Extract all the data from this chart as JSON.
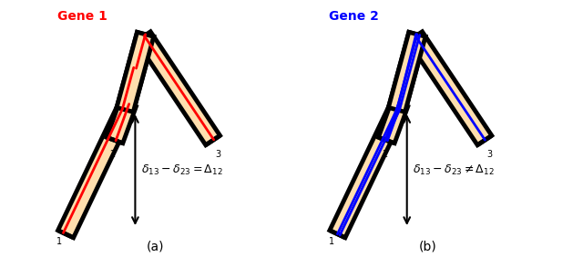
{
  "tree_fill": "#FFDEAD",
  "tree_stroke": "#000000",
  "gene1_color": "#FF0000",
  "gene2_color": "#0000FF",
  "label_color_a": "#FF0000",
  "label_color_b": "#0000FF",
  "formula_a": "$\\delta_{13} - \\delta_{23} = \\Delta_{12}$",
  "formula_b": "$\\delta_{13} - \\delta_{23} \\neq \\Delta_{12}$",
  "label_a": "(a)",
  "label_b": "(b)",
  "gene_label_a": "Gene 1",
  "gene_label_b": "Gene 2"
}
